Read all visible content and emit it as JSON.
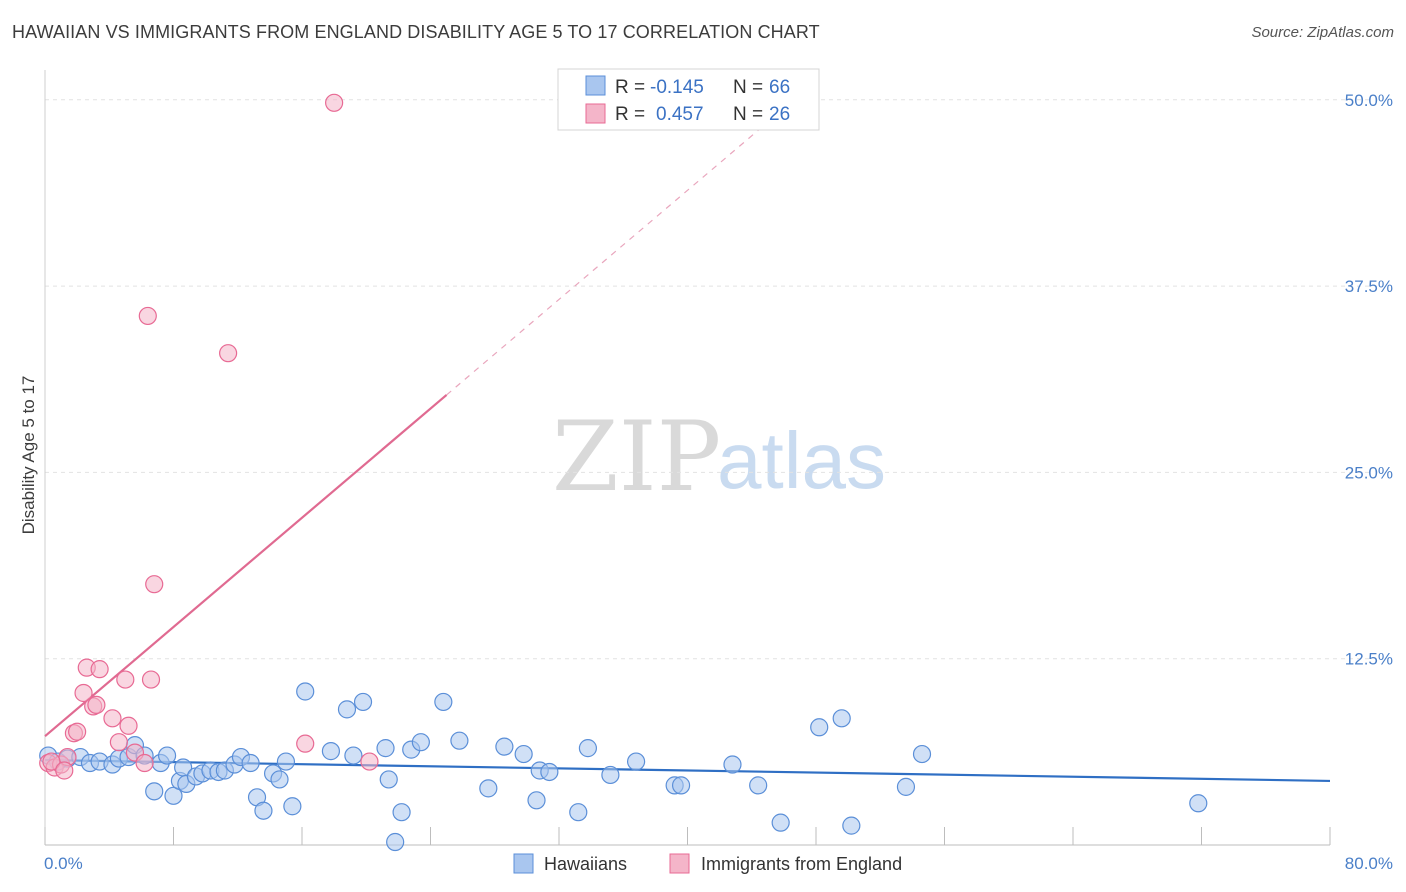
{
  "title": "HAWAIIAN VS IMMIGRANTS FROM ENGLAND DISABILITY AGE 5 TO 17 CORRELATION CHART",
  "source": "Source: ZipAtlas.com",
  "watermark": {
    "zip": "ZIP",
    "atlas": "atlas"
  },
  "colors": {
    "blue": "#5b8fd8",
    "blue_fill": "#a9c6ef",
    "pink": "#e86a94",
    "pink_fill": "#f4b5c9",
    "line_blue": "#2f6fc4",
    "line_pink": "#e06a91"
  },
  "chart_data": {
    "type": "scatter",
    "title": "HAWAIIAN VS IMMIGRANTS FROM ENGLAND DISABILITY AGE 5 TO 17 CORRELATION CHART",
    "ylabel": "Disability Age 5 to 17",
    "xlim": [
      0,
      80
    ],
    "ylim": [
      0,
      52
    ],
    "x_ticks": [
      "0.0%",
      "80.0%"
    ],
    "y_ticks": [
      {
        "value": 12.5,
        "label": "12.5%"
      },
      {
        "value": 25.0,
        "label": "25.0%"
      },
      {
        "value": 37.5,
        "label": "37.5%"
      },
      {
        "value": 50.0,
        "label": "50.0%"
      }
    ],
    "legend": [
      {
        "name": "Hawaiians",
        "r_label": "R =",
        "r": "-0.145",
        "n_label": "N =",
        "n": "66"
      },
      {
        "name": "Immigrants from England",
        "r_label": "R =",
        "r": "0.457",
        "n_label": "N =",
        "n": "26"
      }
    ],
    "series": [
      {
        "name": "Hawaiians",
        "trend": {
          "x0": 0,
          "y0": 5.7,
          "x1": 80,
          "y1": 4.3
        },
        "points": [
          [
            0.2,
            6.0
          ],
          [
            0.8,
            5.6
          ],
          [
            1.4,
            5.8
          ],
          [
            2.2,
            5.9
          ],
          [
            2.8,
            5.5
          ],
          [
            3.4,
            5.6
          ],
          [
            4.2,
            5.4
          ],
          [
            4.6,
            5.8
          ],
          [
            5.2,
            5.9
          ],
          [
            5.6,
            6.7
          ],
          [
            6.2,
            6.0
          ],
          [
            6.8,
            3.6
          ],
          [
            7.2,
            5.5
          ],
          [
            7.6,
            6.0
          ],
          [
            8.0,
            3.3
          ],
          [
            8.4,
            4.3
          ],
          [
            8.6,
            5.2
          ],
          [
            8.8,
            4.1
          ],
          [
            9.4,
            4.6
          ],
          [
            9.8,
            4.8
          ],
          [
            10.3,
            5.0
          ],
          [
            10.8,
            4.9
          ],
          [
            11.2,
            5.0
          ],
          [
            11.8,
            5.4
          ],
          [
            12.2,
            5.9
          ],
          [
            12.8,
            5.5
          ],
          [
            13.2,
            3.2
          ],
          [
            13.6,
            2.3
          ],
          [
            14.2,
            4.8
          ],
          [
            14.6,
            4.4
          ],
          [
            15.4,
            2.6
          ],
          [
            15.0,
            5.6
          ],
          [
            16.2,
            10.3
          ],
          [
            17.8,
            6.3
          ],
          [
            18.8,
            9.1
          ],
          [
            19.2,
            6.0
          ],
          [
            19.8,
            9.6
          ],
          [
            21.4,
            4.4
          ],
          [
            21.2,
            6.5
          ],
          [
            22.2,
            2.2
          ],
          [
            22.8,
            6.4
          ],
          [
            23.4,
            6.9
          ],
          [
            24.8,
            9.6
          ],
          [
            25.8,
            7.0
          ],
          [
            27.6,
            3.8
          ],
          [
            28.6,
            6.6
          ],
          [
            29.8,
            6.1
          ],
          [
            30.6,
            3.0
          ],
          [
            30.8,
            5.0
          ],
          [
            31.4,
            4.9
          ],
          [
            33.2,
            2.2
          ],
          [
            33.8,
            6.5
          ],
          [
            35.2,
            4.7
          ],
          [
            36.8,
            5.6
          ],
          [
            39.2,
            4.0
          ],
          [
            39.6,
            4.0
          ],
          [
            42.8,
            5.4
          ],
          [
            44.4,
            4.0
          ],
          [
            45.8,
            1.5
          ],
          [
            48.2,
            7.9
          ],
          [
            49.6,
            8.5
          ],
          [
            50.2,
            1.3
          ],
          [
            53.6,
            3.9
          ],
          [
            54.6,
            6.1
          ],
          [
            71.8,
            2.8
          ],
          [
            21.8,
            0.2
          ]
        ]
      },
      {
        "name": "Immigrants from England",
        "trend": {
          "x0": 0,
          "y0": 7.3,
          "x1": 25,
          "y1": 30.2,
          "dash_to_x": 45,
          "dash_to_y": 48.5
        },
        "points": [
          [
            0.2,
            5.5
          ],
          [
            0.6,
            5.2
          ],
          [
            1.0,
            5.4
          ],
          [
            1.4,
            5.9
          ],
          [
            1.8,
            7.5
          ],
          [
            2.0,
            7.6
          ],
          [
            2.4,
            10.2
          ],
          [
            2.6,
            11.9
          ],
          [
            3.0,
            9.3
          ],
          [
            3.2,
            9.4
          ],
          [
            3.4,
            11.8
          ],
          [
            4.2,
            8.5
          ],
          [
            5.0,
            11.1
          ],
          [
            5.2,
            8.0
          ],
          [
            5.6,
            6.2
          ],
          [
            6.2,
            5.5
          ],
          [
            6.6,
            11.1
          ],
          [
            6.4,
            35.5
          ],
          [
            6.8,
            17.5
          ],
          [
            4.6,
            6.9
          ],
          [
            11.4,
            33.0
          ],
          [
            16.2,
            6.8
          ],
          [
            20.2,
            5.6
          ],
          [
            18.0,
            49.8
          ],
          [
            0.4,
            5.6
          ],
          [
            1.2,
            5.0
          ]
        ]
      }
    ]
  }
}
